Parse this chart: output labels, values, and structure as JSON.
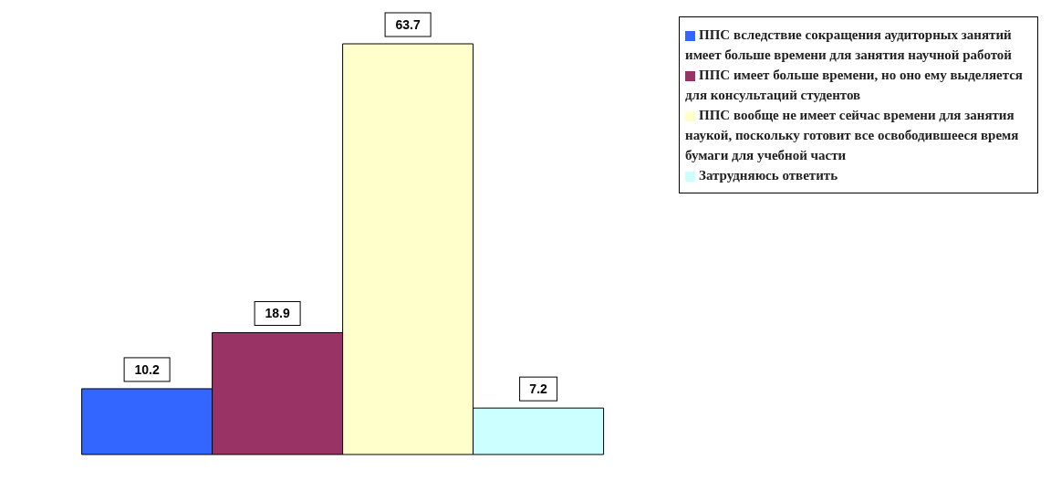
{
  "chart_data": {
    "type": "bar",
    "categories": [
      null
    ],
    "series": [
      {
        "name": "ППС вследствие сокращения аудиторных занятий имеет больше времени для занятия научной работой",
        "color": "#3366ff",
        "values": [
          10.2
        ]
      },
      {
        "name": "ППС имеет больше времени, но оно ему выделяется для консультаций студентов",
        "color": "#993366",
        "values": [
          18.9
        ]
      },
      {
        "name": "ППС вообще не имеет сейчас времени для занятия наукой, поскольку готовит все освободившееся время бумаги для учебной части",
        "color": "#ffffcc",
        "values": [
          63.7
        ]
      },
      {
        "name": "Затрудняюсь ответить",
        "color": "#ccffff",
        "values": [
          7.2
        ]
      }
    ],
    "data_labels": true,
    "legend": "right"
  }
}
